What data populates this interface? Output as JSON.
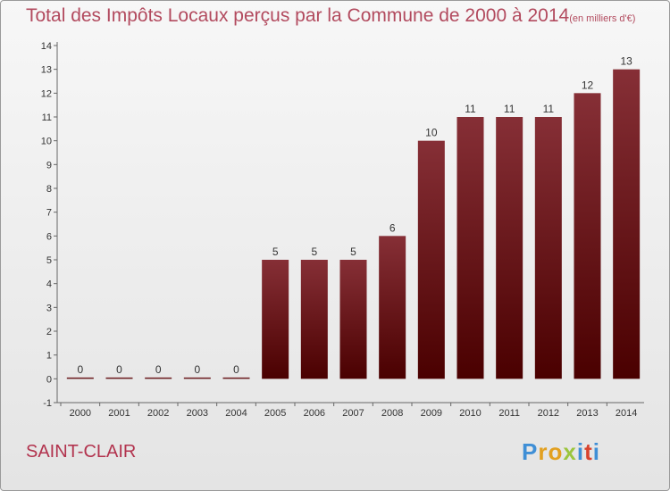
{
  "header": {
    "title": "Total des Impôts Locaux perçus par la Commune de 2000 à 2014",
    "unit": "(en milliers d'€)"
  },
  "footer": {
    "commune": "SAINT-CLAIR",
    "logo_text": "Proxiti"
  },
  "colors": {
    "bar_top": "#862f36",
    "bar_bottom": "#4a0000",
    "title": "#b24a5e",
    "commune": "#b2334e"
  },
  "chart_data": {
    "type": "bar",
    "title": "Total des Impôts Locaux perçus par la Commune de 2000 à 2014",
    "ylabel": "",
    "xlabel": "",
    "categories": [
      "2000",
      "2001",
      "2002",
      "2003",
      "2004",
      "2005",
      "2006",
      "2007",
      "2008",
      "2009",
      "2010",
      "2011",
      "2012",
      "2013",
      "2014"
    ],
    "values": [
      0,
      0,
      0,
      0,
      0,
      5,
      5,
      5,
      6,
      10,
      11,
      11,
      11,
      12,
      13
    ],
    "ylim": [
      -1,
      14
    ],
    "yticks": [
      -1,
      0,
      1,
      2,
      3,
      4,
      5,
      6,
      7,
      8,
      9,
      10,
      11,
      12,
      13,
      14
    ],
    "grid": false,
    "legend": "none"
  }
}
